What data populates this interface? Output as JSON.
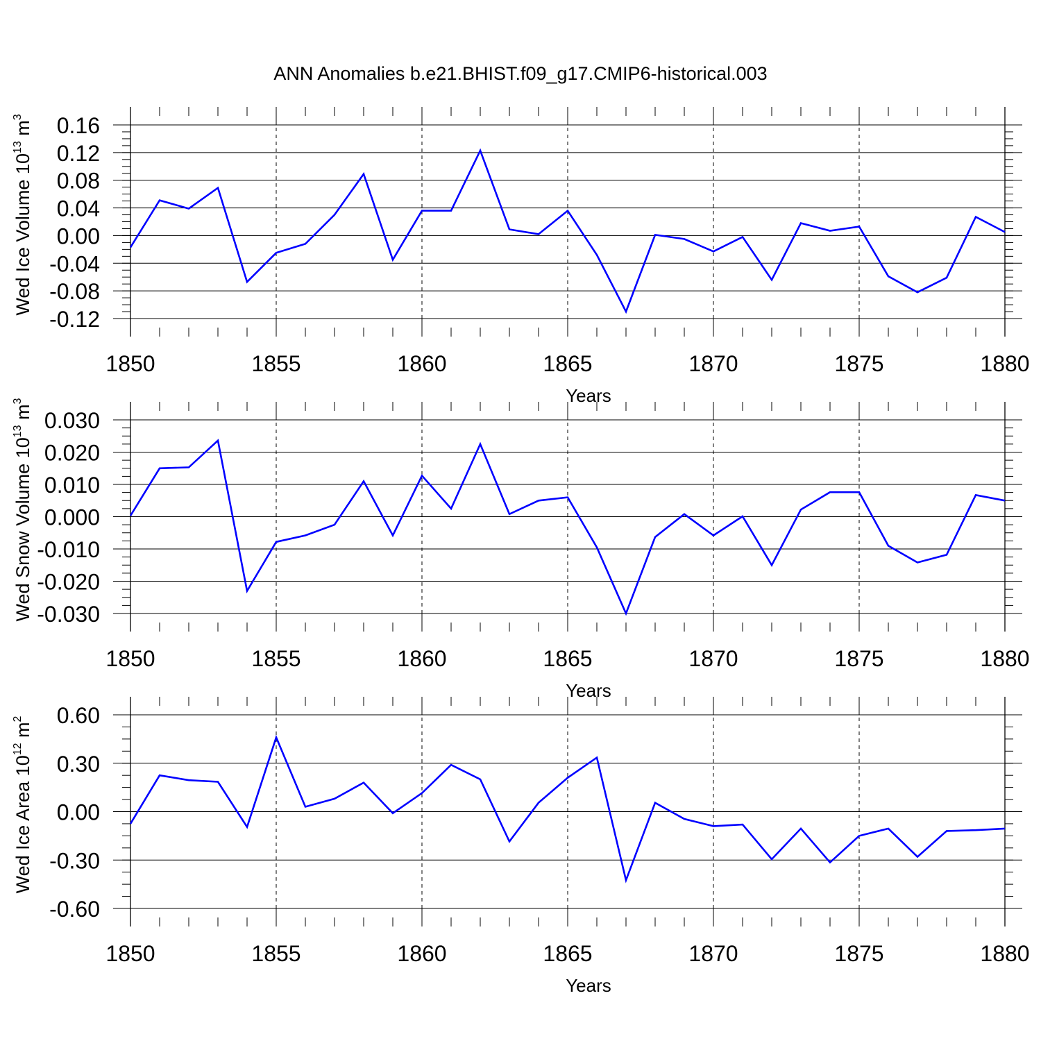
{
  "title": "ANN Anomalies b.e21.BHIST.f09_g17.CMIP6-historical.003",
  "chart_data": [
    {
      "type": "line",
      "ylabel": {
        "main": "Wed Ice Volume 10",
        "exp": "13",
        "unit": " m",
        "unit_exp": "3"
      },
      "xlabel": "Years",
      "xlim": [
        1850,
        1880
      ],
      "ylim": [
        -0.12,
        0.16
      ],
      "yticks": [
        -0.12,
        -0.08,
        -0.04,
        0.0,
        0.04,
        0.08,
        0.12,
        0.16
      ],
      "ytick_labels": [
        "-0.12",
        "-0.08",
        "-0.04",
        "0.00",
        "0.04",
        "0.08",
        "0.12",
        "0.16"
      ],
      "xticks": [
        1850,
        1855,
        1860,
        1865,
        1870,
        1875,
        1880
      ],
      "xtick_labels": [
        "1850",
        "1855",
        "1860",
        "1865",
        "1870",
        "1875",
        "1880"
      ],
      "line_color": "#0000ff",
      "x": [
        1850,
        1851,
        1852,
        1853,
        1854,
        1855,
        1856,
        1857,
        1858,
        1859,
        1860,
        1861,
        1862,
        1863,
        1864,
        1865,
        1866,
        1867,
        1868,
        1869,
        1870,
        1871,
        1872,
        1873,
        1874,
        1875,
        1876,
        1877,
        1878,
        1879,
        1880
      ],
      "values": [
        -0.017,
        0.051,
        0.039,
        0.069,
        -0.067,
        -0.025,
        -0.012,
        0.03,
        0.089,
        -0.035,
        0.036,
        0.036,
        0.123,
        0.009,
        0.002,
        0.036,
        -0.028,
        -0.11,
        0.001,
        -0.005,
        -0.023,
        -0.002,
        -0.064,
        0.018,
        0.007,
        0.013,
        -0.059,
        -0.082,
        -0.061,
        0.027,
        0.005
      ]
    },
    {
      "type": "line",
      "ylabel": {
        "main": "Wed Snow Volume 10",
        "exp": "13",
        "unit": " m",
        "unit_exp": "3"
      },
      "xlabel": "Years",
      "xlim": [
        1850,
        1880
      ],
      "ylim": [
        -0.03,
        0.03
      ],
      "yticks": [
        -0.03,
        -0.02,
        -0.01,
        0.0,
        0.01,
        0.02,
        0.03
      ],
      "ytick_labels": [
        "-0.030",
        "-0.020",
        "-0.010",
        "0.000",
        "0.010",
        "0.020",
        "0.030"
      ],
      "xticks": [
        1850,
        1855,
        1860,
        1865,
        1870,
        1875,
        1880
      ],
      "xtick_labels": [
        "1850",
        "1855",
        "1860",
        "1865",
        "1870",
        "1875",
        "1880"
      ],
      "line_color": "#0000ff",
      "x": [
        1850,
        1851,
        1852,
        1853,
        1854,
        1855,
        1856,
        1857,
        1858,
        1859,
        1860,
        1861,
        1862,
        1863,
        1864,
        1865,
        1866,
        1867,
        1868,
        1869,
        1870,
        1871,
        1872,
        1873,
        1874,
        1875,
        1876,
        1877,
        1878,
        1879,
        1880
      ],
      "values": [
        0.0003,
        0.015,
        0.0153,
        0.0236,
        -0.023,
        -0.0078,
        -0.0058,
        -0.0025,
        0.011,
        -0.0058,
        0.0127,
        0.0025,
        0.0225,
        0.0008,
        0.005,
        0.006,
        -0.0095,
        -0.03,
        -0.0063,
        0.0008,
        -0.0058,
        0.0001,
        -0.015,
        0.0022,
        0.0076,
        0.0076,
        -0.009,
        -0.0142,
        -0.0118,
        0.0067,
        0.005
      ]
    },
    {
      "type": "line",
      "ylabel": {
        "main": "Wed Ice Area 10",
        "exp": "12",
        "unit": " m",
        "unit_exp": "2"
      },
      "xlabel": "Years",
      "xlim": [
        1850,
        1880
      ],
      "ylim": [
        -0.6,
        0.6
      ],
      "yticks": [
        -0.6,
        -0.3,
        0.0,
        0.3,
        0.6
      ],
      "ytick_labels": [
        "-0.60",
        "-0.30",
        "0.00",
        "0.30",
        "0.60"
      ],
      "xticks": [
        1850,
        1855,
        1860,
        1865,
        1870,
        1875,
        1880
      ],
      "xtick_labels": [
        "1850",
        "1855",
        "1860",
        "1865",
        "1870",
        "1875",
        "1880"
      ],
      "line_color": "#0000ff",
      "x": [
        1850,
        1851,
        1852,
        1853,
        1854,
        1855,
        1856,
        1857,
        1858,
        1859,
        1860,
        1861,
        1862,
        1863,
        1864,
        1865,
        1866,
        1867,
        1868,
        1869,
        1870,
        1871,
        1872,
        1873,
        1874,
        1875,
        1876,
        1877,
        1878,
        1879,
        1880
      ],
      "values": [
        -0.075,
        0.225,
        0.195,
        0.185,
        -0.095,
        0.46,
        0.03,
        0.08,
        0.18,
        -0.01,
        0.115,
        0.29,
        0.2,
        -0.185,
        0.055,
        0.21,
        0.335,
        -0.425,
        0.055,
        -0.045,
        -0.09,
        -0.08,
        -0.295,
        -0.105,
        -0.315,
        -0.15,
        -0.105,
        -0.28,
        -0.12,
        -0.115,
        -0.105
      ]
    }
  ]
}
